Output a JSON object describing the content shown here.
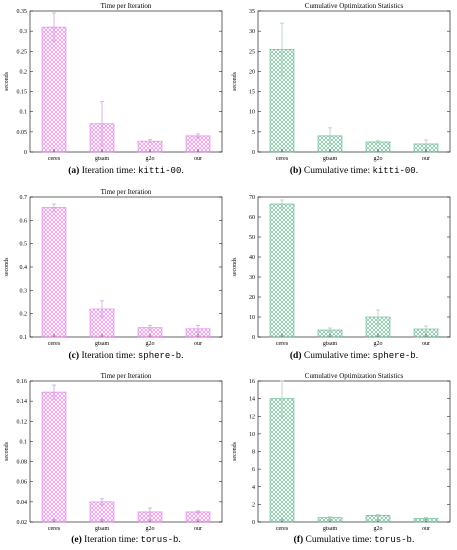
{
  "chart_data": [
    {
      "type": "bar",
      "title": "Time per Iteration",
      "ylabel": "seconds",
      "xlabel": "",
      "categories": [
        "ceres",
        "gtsam",
        "g2o",
        "our"
      ],
      "values": [
        0.31,
        0.07,
        0.027,
        0.04
      ],
      "errors": [
        0.035,
        0.055,
        0.004,
        0.005
      ],
      "ylim": [
        0,
        0.35
      ],
      "yticks": [
        0,
        0.05,
        0.1,
        0.15,
        0.2,
        0.25,
        0.3,
        0.35
      ],
      "yticklabels": [
        "0",
        "0.05",
        "0.1",
        "0.15",
        "0.2",
        "0.25",
        "0.3",
        "0.35"
      ],
      "color": "#e676e6",
      "grid": false,
      "caption_label": "(a)",
      "caption_text": "Iteration time: ",
      "caption_code": "kitti-00",
      "caption_end": "."
    },
    {
      "type": "bar",
      "title": "Cumulative Optimization Statistics",
      "ylabel": "seconds",
      "xlabel": "",
      "categories": [
        "ceres",
        "gtsam",
        "g2o",
        "our"
      ],
      "values": [
        25.5,
        4.0,
        2.5,
        2.0
      ],
      "errors": [
        6.5,
        2.0,
        0.3,
        1.0
      ],
      "ylim": [
        0,
        35
      ],
      "yticks": [
        0,
        5,
        10,
        15,
        20,
        25,
        30,
        35
      ],
      "yticklabels": [
        "0",
        "5",
        "10",
        "15",
        "20",
        "25",
        "30",
        "35"
      ],
      "color": "#5fb38a",
      "grid": false,
      "caption_label": "(b)",
      "caption_text": "Cumulative time: ",
      "caption_code": "kitti-00",
      "caption_end": "."
    },
    {
      "type": "bar",
      "title": "Time per Iteration",
      "ylabel": "seconds",
      "xlabel": "",
      "categories": [
        "ceres",
        "gtsam",
        "g2o",
        "our"
      ],
      "values": [
        0.655,
        0.22,
        0.14,
        0.135
      ],
      "errors": [
        0.015,
        0.035,
        0.01,
        0.015
      ],
      "ylim": [
        0.1,
        0.7
      ],
      "yticks": [
        0.1,
        0.2,
        0.3,
        0.4,
        0.5,
        0.6,
        0.7
      ],
      "yticklabels": [
        "0.1",
        "0.2",
        "0.3",
        "0.4",
        "0.5",
        "0.6",
        "0.7"
      ],
      "color": "#e676e6",
      "grid": false,
      "caption_label": "(c)",
      "caption_text": "Iteration time: ",
      "caption_code": "sphere-b",
      "caption_end": "."
    },
    {
      "type": "bar",
      "title": "",
      "ylabel": "seconds",
      "xlabel": "",
      "categories": [
        "ceres",
        "gtsam",
        "g2o",
        "our"
      ],
      "values": [
        66.5,
        3.5,
        10.0,
        4.0
      ],
      "errors": [
        2.0,
        1.0,
        3.5,
        1.5
      ],
      "ylim": [
        0,
        70
      ],
      "yticks": [
        0,
        10,
        20,
        30,
        40,
        50,
        60,
        70
      ],
      "yticklabels": [
        "0",
        "10",
        "20",
        "30",
        "40",
        "50",
        "60",
        "70"
      ],
      "color": "#5fb38a",
      "grid": false,
      "caption_label": "(d)",
      "caption_text": "Cumulative time: ",
      "caption_code": "sphere-b",
      "caption_end": "."
    },
    {
      "type": "bar",
      "title": "Time per Iteration",
      "ylabel": "seconds",
      "xlabel": "",
      "categories": [
        "ceres",
        "gtsam",
        "g2o",
        "our"
      ],
      "values": [
        0.149,
        0.04,
        0.03,
        0.03
      ],
      "errors": [
        0.007,
        0.003,
        0.004,
        0.001
      ],
      "ylim": [
        0.02,
        0.16
      ],
      "yticks": [
        0.02,
        0.04,
        0.06,
        0.08,
        0.1,
        0.12,
        0.14,
        0.16
      ],
      "yticklabels": [
        "0.02",
        "0.04",
        "0.06",
        "0.08",
        "0.1",
        "0.12",
        "0.14",
        "0.16"
      ],
      "color": "#e676e6",
      "grid": false,
      "caption_label": "(e)",
      "caption_text": "Iteration time: ",
      "caption_code": "torus-b",
      "caption_end": "."
    },
    {
      "type": "bar",
      "title": "Cumulative Optimization Statistics",
      "ylabel": "seconds",
      "xlabel": "",
      "categories": [
        "ceres",
        "gtsam",
        "g2o",
        "our"
      ],
      "values": [
        14.0,
        0.5,
        0.75,
        0.4
      ],
      "errors": [
        2.0,
        0.1,
        0.1,
        0.1
      ],
      "ylim": [
        0,
        16
      ],
      "yticks": [
        0,
        2,
        4,
        6,
        8,
        10,
        12,
        14,
        16
      ],
      "yticklabels": [
        "0",
        "2",
        "4",
        "6",
        "8",
        "10",
        "12",
        "14",
        "16"
      ],
      "color": "#5fb38a",
      "grid": false,
      "caption_label": "(f)",
      "caption_text": "Cumulative time: ",
      "caption_code": "torus-b",
      "caption_end": "."
    }
  ]
}
